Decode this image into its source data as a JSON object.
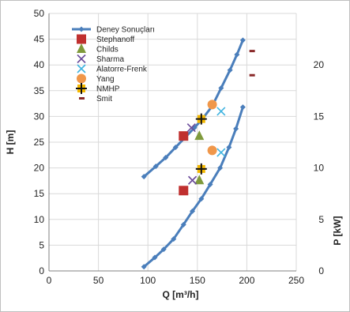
{
  "chart_data": {
    "type": "scatter",
    "xlabel": "Q [m³/h]",
    "ylabel": "H [m]",
    "y2label": "P [kW]",
    "xlim": [
      0,
      250
    ],
    "ylim": [
      0,
      50
    ],
    "y2lim": [
      0,
      25
    ],
    "xticks": [
      0,
      50,
      100,
      150,
      200,
      250
    ],
    "yticks": [
      0,
      5,
      10,
      15,
      20,
      25,
      30,
      35,
      40,
      45,
      50
    ],
    "y2ticks": [
      0,
      5,
      10,
      15,
      20
    ],
    "grid": true,
    "legend_position": "top-left",
    "series": [
      {
        "name": "Deney Sonuçları",
        "marker": "line-diamond",
        "color": "#4a7ebb",
        "axis": "H",
        "x": [
          96,
          108,
          118,
          128,
          137,
          147,
          155,
          165,
          174,
          183,
          190,
          196
        ],
        "y": [
          18.3,
          20.3,
          22.0,
          24.0,
          25.8,
          27.8,
          29.5,
          32.0,
          35.5,
          39.0,
          42.0,
          44.8
        ]
      },
      {
        "name": "Deney Sonuçları",
        "marker": "line-diamond",
        "color": "#4a7ebb",
        "axis": "P",
        "x": [
          96,
          107,
          116,
          126,
          136,
          145,
          154,
          163,
          173,
          182,
          189,
          196
        ],
        "y": [
          0.4,
          1.3,
          2.1,
          3.1,
          4.5,
          5.8,
          7.0,
          8.4,
          10.0,
          12.0,
          13.8,
          15.9
        ]
      },
      {
        "name": "Stephanoff",
        "marker": "square",
        "color": "#c0302f",
        "points": [
          {
            "x": 136,
            "y": 26.2,
            "axis": "H"
          },
          {
            "x": 136,
            "y": 7.8,
            "axis": "P"
          }
        ]
      },
      {
        "name": "Childs",
        "marker": "triangle",
        "color": "#7f9a3c",
        "points": [
          {
            "x": 152,
            "y": 26.2,
            "axis": "H"
          },
          {
            "x": 152,
            "y": 8.8,
            "axis": "P"
          }
        ]
      },
      {
        "name": "Sharma",
        "marker": "x",
        "color": "#6a4a9a",
        "points": [
          {
            "x": 144,
            "y": 27.8,
            "axis": "H"
          },
          {
            "x": 145,
            "y": 8.8,
            "axis": "P"
          }
        ]
      },
      {
        "name": "Alatorre-Frenk",
        "marker": "x",
        "color": "#3fb3e0",
        "points": [
          {
            "x": 174,
            "y": 31.0,
            "axis": "H"
          },
          {
            "x": 174,
            "y": 11.5,
            "axis": "P"
          }
        ]
      },
      {
        "name": "Yang",
        "marker": "circle",
        "color": "#f0974a",
        "points": [
          {
            "x": 165,
            "y": 32.3,
            "axis": "H"
          },
          {
            "x": 165,
            "y": 11.7,
            "axis": "P"
          }
        ]
      },
      {
        "name": "NMHP",
        "marker": "plus",
        "color": "#f5b800",
        "points": [
          {
            "x": 154,
            "y": 29.5,
            "axis": "H"
          },
          {
            "x": 154,
            "y": 9.9,
            "axis": "P"
          }
        ]
      },
      {
        "name": "Smit",
        "marker": "dash",
        "color": "#8a2a2a",
        "points": [
          {
            "x": 205,
            "y": 42.7,
            "axis": "H"
          },
          {
            "x": 205,
            "y": 19.0,
            "axis": "P"
          }
        ]
      }
    ]
  }
}
